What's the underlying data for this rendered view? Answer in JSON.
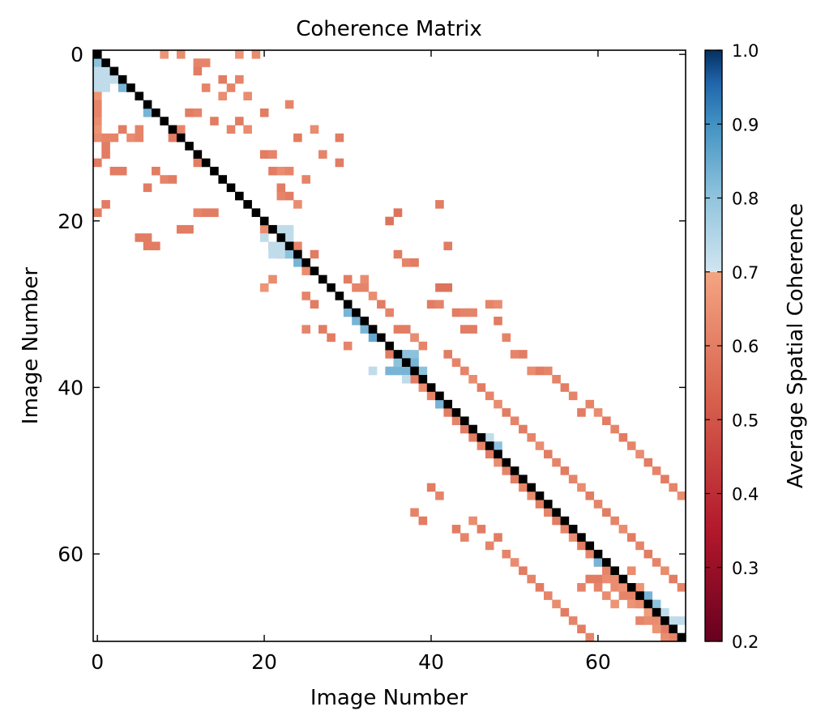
{
  "chart_data": {
    "type": "heatmap",
    "title": "Coherence Matrix",
    "xlabel": "Image Number",
    "ylabel": "Image Number",
    "n": 71,
    "xlim": [
      -0.5,
      70.5
    ],
    "ylim": [
      70.5,
      -0.5
    ],
    "x_ticks": [
      0,
      20,
      40,
      60
    ],
    "y_ticks": [
      0,
      20,
      40,
      60
    ],
    "x_tick_labels": [
      "0",
      "20",
      "40",
      "60"
    ],
    "y_tick_labels": [
      "0",
      "20",
      "40",
      "60"
    ],
    "diagonal_color": "#000000",
    "colorbar": {
      "label": "Average Spatial Coherence",
      "min": 0.2,
      "max": 1.0,
      "threshold": 0.7,
      "ticks": [
        0.2,
        0.3,
        0.4,
        0.5,
        0.6,
        0.7,
        0.8,
        0.9,
        1.0
      ],
      "tick_labels": [
        "0.2",
        "0.3",
        "0.4",
        "0.5",
        "0.6",
        "0.7",
        "0.8",
        "0.9",
        "1.0"
      ],
      "colormap": "RdBu",
      "color_stops": [
        "#67001f",
        "#b2182b",
        "#d6604d",
        "#f4a582",
        "#d1e5f0",
        "#92c5de",
        "#4393c3",
        "#2166ac",
        "#053061"
      ]
    },
    "cells": [
      [
        0,
        1,
        0.78
      ],
      [
        0,
        2,
        0.72
      ],
      [
        1,
        2,
        0.72
      ],
      [
        1,
        3,
        0.72
      ],
      [
        1,
        4,
        0.72
      ],
      [
        2,
        3,
        0.72
      ],
      [
        3,
        4,
        0.8
      ],
      [
        6,
        7,
        0.8
      ],
      [
        0,
        3,
        0.72
      ],
      [
        0,
        4,
        0.72
      ],
      [
        0,
        5,
        0.66
      ],
      [
        0,
        8,
        0.64
      ],
      [
        0,
        9,
        0.66
      ],
      [
        0,
        10,
        0.64
      ],
      [
        1,
        10,
        0.62
      ],
      [
        0,
        13,
        0.6
      ],
      [
        0,
        19,
        0.6
      ],
      [
        1,
        11,
        0.6
      ],
      [
        0,
        6,
        0.62
      ],
      [
        0,
        7,
        0.62
      ],
      [
        1,
        18,
        0.6
      ],
      [
        4,
        10,
        0.64
      ],
      [
        5,
        10,
        0.62
      ],
      [
        6,
        16,
        0.6
      ],
      [
        7,
        14,
        0.6
      ],
      [
        8,
        15,
        0.62
      ],
      [
        9,
        15,
        0.6
      ],
      [
        12,
        19,
        0.62
      ],
      [
        13,
        19,
        0.6
      ],
      [
        14,
        19,
        0.6
      ],
      [
        10,
        21,
        0.6
      ],
      [
        11,
        21,
        0.6
      ],
      [
        1,
        12,
        0.6
      ],
      [
        2,
        14,
        0.6
      ],
      [
        3,
        14,
        0.6
      ],
      [
        2,
        10,
        0.62
      ],
      [
        3,
        9,
        0.6
      ],
      [
        5,
        9,
        0.62
      ],
      [
        5,
        22,
        0.6
      ],
      [
        6,
        22,
        0.6
      ],
      [
        6,
        23,
        0.6
      ],
      [
        7,
        23,
        0.6
      ],
      [
        8,
        0,
        0.66
      ],
      [
        10,
        0,
        0.64
      ],
      [
        12,
        1,
        0.62
      ],
      [
        13,
        1,
        0.62
      ],
      [
        17,
        0,
        0.66
      ],
      [
        19,
        0,
        0.64
      ],
      [
        12,
        13,
        0.6
      ],
      [
        12,
        2,
        0.6
      ],
      [
        17,
        3,
        0.62
      ],
      [
        12,
        7,
        0.62
      ],
      [
        15,
        5,
        0.64
      ],
      [
        16,
        4,
        0.62
      ],
      [
        9,
        10,
        0.6
      ],
      [
        10,
        9,
        0.62
      ],
      [
        11,
        7,
        0.6
      ],
      [
        13,
        4,
        0.62
      ],
      [
        14,
        8,
        0.6
      ],
      [
        15,
        3,
        0.6
      ],
      [
        16,
        9,
        0.62
      ],
      [
        17,
        8,
        0.6
      ],
      [
        18,
        9,
        0.64
      ],
      [
        18,
        5,
        0.64
      ],
      [
        20,
        7,
        0.6
      ],
      [
        21,
        14,
        0.6
      ],
      [
        23,
        6,
        0.62
      ],
      [
        24,
        10,
        0.6
      ],
      [
        26,
        9,
        0.64
      ],
      [
        27,
        12,
        0.62
      ],
      [
        29,
        13,
        0.6
      ],
      [
        29,
        10,
        0.6
      ],
      [
        20,
        12,
        0.6
      ],
      [
        21,
        12,
        0.62
      ],
      [
        22,
        14,
        0.64
      ],
      [
        23,
        14,
        0.62
      ],
      [
        25,
        15,
        0.62
      ],
      [
        22,
        16,
        0.6
      ],
      [
        22,
        17,
        0.62
      ],
      [
        23,
        17,
        0.6
      ],
      [
        24,
        18,
        0.64
      ],
      [
        19,
        19,
        0.6
      ],
      [
        20,
        21,
        0.64
      ],
      [
        21,
        23,
        0.62
      ],
      [
        22,
        24,
        0.66
      ],
      [
        24,
        23,
        0.62
      ],
      [
        26,
        24,
        0.6
      ],
      [
        25,
        26,
        0.64
      ],
      [
        21,
        27,
        0.64
      ],
      [
        20,
        28,
        0.66
      ],
      [
        25,
        29,
        0.62
      ],
      [
        26,
        30,
        0.6
      ],
      [
        25,
        33,
        0.62
      ],
      [
        27,
        33,
        0.6
      ],
      [
        28,
        34,
        0.6
      ],
      [
        30,
        35,
        0.62
      ],
      [
        35,
        36,
        0.6
      ],
      [
        36,
        37,
        0.6
      ],
      [
        37,
        36,
        0.62
      ],
      [
        38,
        39,
        0.6
      ],
      [
        39,
        40,
        0.64
      ],
      [
        40,
        41,
        0.62
      ],
      [
        41,
        42,
        0.64
      ],
      [
        42,
        43,
        0.6
      ],
      [
        43,
        44,
        0.62
      ],
      [
        44,
        45,
        0.6
      ],
      [
        45,
        46,
        0.6
      ],
      [
        46,
        47,
        0.62
      ],
      [
        47,
        48,
        0.6
      ],
      [
        48,
        49,
        0.64
      ],
      [
        49,
        50,
        0.62
      ],
      [
        50,
        51,
        0.6
      ],
      [
        51,
        52,
        0.62
      ],
      [
        52,
        53,
        0.64
      ],
      [
        53,
        54,
        0.6
      ],
      [
        54,
        55,
        0.62
      ],
      [
        55,
        56,
        0.6
      ],
      [
        56,
        57,
        0.62
      ],
      [
        57,
        58,
        0.64
      ],
      [
        58,
        59,
        0.6
      ],
      [
        59,
        60,
        0.62
      ],
      [
        60,
        61,
        0.6
      ],
      [
        61,
        62,
        0.62
      ],
      [
        62,
        63,
        0.64
      ],
      [
        63,
        64,
        0.6
      ],
      [
        64,
        65,
        0.62
      ],
      [
        65,
        66,
        0.6
      ],
      [
        66,
        67,
        0.62
      ],
      [
        67,
        68,
        0.64
      ],
      [
        68,
        69,
        0.6
      ],
      [
        69,
        70,
        0.62
      ],
      [
        20,
        22,
        0.72
      ],
      [
        21,
        23,
        0.72
      ],
      [
        21,
        24,
        0.72
      ],
      [
        22,
        24,
        0.72
      ],
      [
        23,
        24,
        0.78
      ],
      [
        24,
        25,
        0.8
      ],
      [
        20,
        20,
        0.72
      ],
      [
        22,
        21,
        0.72
      ],
      [
        24,
        24,
        0.8
      ],
      [
        23,
        21,
        0.72
      ],
      [
        23,
        22,
        0.72
      ],
      [
        22,
        23,
        0.72
      ],
      [
        30,
        31,
        0.8
      ],
      [
        31,
        32,
        0.8
      ],
      [
        32,
        33,
        0.8
      ],
      [
        30,
        30,
        0.8
      ],
      [
        31,
        31,
        0.8
      ],
      [
        33,
        34,
        0.82
      ],
      [
        33,
        38,
        0.72
      ],
      [
        37,
        36,
        0.78
      ],
      [
        37,
        37,
        0.8
      ],
      [
        38,
        36,
        0.78
      ],
      [
        36,
        38,
        0.8
      ],
      [
        37,
        38,
        0.8
      ],
      [
        38,
        37,
        0.8
      ],
      [
        37,
        39,
        0.72
      ],
      [
        38,
        34,
        0.78
      ],
      [
        36,
        37,
        0.78
      ],
      [
        35,
        38,
        0.8
      ],
      [
        39,
        38,
        0.78
      ],
      [
        41,
        42,
        0.8
      ],
      [
        47,
        46,
        0.72
      ],
      [
        48,
        47,
        0.78
      ],
      [
        50,
        50,
        0.8
      ],
      [
        51,
        51,
        0.78
      ],
      [
        60,
        61,
        0.8
      ],
      [
        66,
        65,
        0.8
      ],
      [
        67,
        66,
        0.78
      ],
      [
        68,
        67,
        0.72
      ],
      [
        69,
        68,
        0.72
      ],
      [
        70,
        68,
        0.72
      ],
      [
        30,
        27,
        0.6
      ],
      [
        31,
        28,
        0.62
      ],
      [
        32,
        27,
        0.64
      ],
      [
        32,
        28,
        0.62
      ],
      [
        33,
        29,
        0.64
      ],
      [
        34,
        30,
        0.6
      ],
      [
        35,
        31,
        0.62
      ],
      [
        36,
        33,
        0.6
      ],
      [
        37,
        33,
        0.6
      ],
      [
        38,
        34,
        0.64
      ],
      [
        39,
        35,
        0.62
      ],
      [
        40,
        30,
        0.6
      ],
      [
        41,
        30,
        0.62
      ],
      [
        42,
        36,
        0.6
      ],
      [
        43,
        37,
        0.62
      ],
      [
        44,
        38,
        0.62
      ],
      [
        45,
        39,
        0.64
      ],
      [
        46,
        40,
        0.6
      ],
      [
        47,
        41,
        0.62
      ],
      [
        48,
        42,
        0.64
      ],
      [
        49,
        43,
        0.6
      ],
      [
        50,
        44,
        0.62
      ],
      [
        51,
        45,
        0.6
      ],
      [
        52,
        46,
        0.62
      ],
      [
        53,
        47,
        0.64
      ],
      [
        54,
        48,
        0.6
      ],
      [
        55,
        49,
        0.62
      ],
      [
        56,
        50,
        0.6
      ],
      [
        57,
        51,
        0.62
      ],
      [
        58,
        52,
        0.64
      ],
      [
        59,
        53,
        0.6
      ],
      [
        60,
        54,
        0.62
      ],
      [
        61,
        55,
        0.6
      ],
      [
        62,
        56,
        0.62
      ],
      [
        63,
        57,
        0.64
      ],
      [
        64,
        58,
        0.6
      ],
      [
        65,
        59,
        0.62
      ],
      [
        66,
        60,
        0.6
      ],
      [
        67,
        61,
        0.62
      ],
      [
        68,
        62,
        0.64
      ],
      [
        69,
        63,
        0.6
      ],
      [
        70,
        64,
        0.62
      ],
      [
        35,
        20,
        0.58
      ],
      [
        36,
        24,
        0.6
      ],
      [
        37,
        25,
        0.62
      ],
      [
        38,
        25,
        0.6
      ],
      [
        36,
        19,
        0.58
      ],
      [
        41,
        18,
        0.6
      ],
      [
        42,
        23,
        0.6
      ],
      [
        41,
        28,
        0.58
      ],
      [
        42,
        28,
        0.58
      ],
      [
        43,
        31,
        0.6
      ],
      [
        44,
        31,
        0.62
      ],
      [
        45,
        31,
        0.62
      ],
      [
        44,
        33,
        0.6
      ],
      [
        45,
        33,
        0.6
      ],
      [
        47,
        30,
        0.62
      ],
      [
        48,
        30,
        0.64
      ],
      [
        48,
        32,
        0.6
      ],
      [
        49,
        34,
        0.62
      ],
      [
        50,
        36,
        0.62
      ],
      [
        51,
        36,
        0.6
      ],
      [
        52,
        38,
        0.64
      ],
      [
        53,
        38,
        0.6
      ],
      [
        54,
        38,
        0.62
      ],
      [
        55,
        39,
        0.62
      ],
      [
        56,
        40,
        0.6
      ],
      [
        57,
        41,
        0.62
      ],
      [
        58,
        43,
        0.6
      ],
      [
        59,
        42,
        0.62
      ],
      [
        60,
        43,
        0.64
      ],
      [
        61,
        44,
        0.6
      ],
      [
        62,
        45,
        0.62
      ],
      [
        63,
        46,
        0.6
      ],
      [
        64,
        47,
        0.62
      ],
      [
        65,
        48,
        0.64
      ],
      [
        66,
        49,
        0.6
      ],
      [
        67,
        50,
        0.62
      ],
      [
        68,
        51,
        0.6
      ],
      [
        69,
        52,
        0.62
      ],
      [
        70,
        53,
        0.64
      ],
      [
        38,
        55,
        0.62
      ],
      [
        39,
        56,
        0.6
      ],
      [
        40,
        52,
        0.6
      ],
      [
        41,
        53,
        0.62
      ],
      [
        43,
        57,
        0.6
      ],
      [
        44,
        58,
        0.62
      ],
      [
        45,
        56,
        0.64
      ],
      [
        46,
        57,
        0.6
      ],
      [
        47,
        59,
        0.62
      ],
      [
        48,
        58,
        0.6
      ],
      [
        49,
        60,
        0.62
      ],
      [
        50,
        61,
        0.64
      ],
      [
        51,
        62,
        0.6
      ],
      [
        52,
        63,
        0.62
      ],
      [
        53,
        64,
        0.6
      ],
      [
        54,
        65,
        0.62
      ],
      [
        55,
        66,
        0.64
      ],
      [
        56,
        67,
        0.6
      ],
      [
        57,
        68,
        0.62
      ],
      [
        58,
        69,
        0.6
      ],
      [
        59,
        70,
        0.62
      ],
      [
        62,
        64,
        0.64
      ],
      [
        63,
        64,
        0.66
      ],
      [
        64,
        62,
        0.64
      ],
      [
        65,
        64,
        0.66
      ],
      [
        63,
        65,
        0.62
      ],
      [
        64,
        66,
        0.66
      ],
      [
        65,
        66,
        0.64
      ],
      [
        66,
        67,
        0.68
      ],
      [
        67,
        67,
        0.66
      ],
      [
        68,
        68,
        0.62
      ],
      [
        69,
        69,
        0.64
      ],
      [
        70,
        70,
        0.6
      ],
      [
        66,
        68,
        0.64
      ],
      [
        67,
        69,
        0.66
      ],
      [
        68,
        70,
        0.64
      ],
      [
        61,
        65,
        0.64
      ],
      [
        62,
        66,
        0.66
      ],
      [
        65,
        68,
        0.62
      ],
      [
        60,
        63,
        0.6
      ],
      [
        60,
        64,
        0.62
      ],
      [
        61,
        63,
        0.64
      ],
      [
        59,
        63,
        0.6
      ],
      [
        58,
        64,
        0.62
      ]
    ]
  }
}
